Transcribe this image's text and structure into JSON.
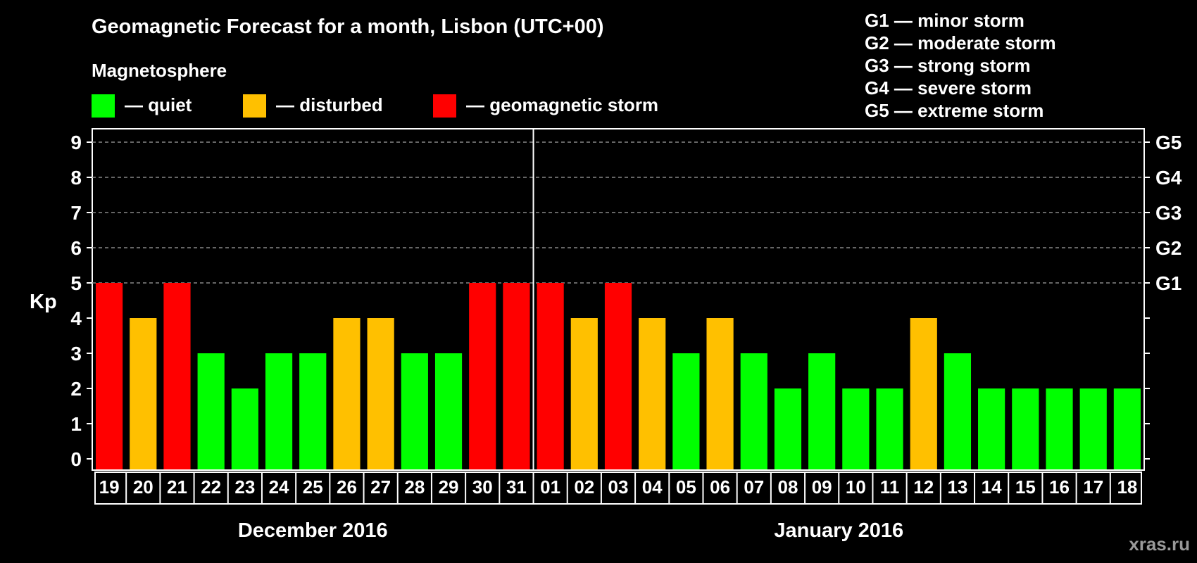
{
  "chart_data": {
    "type": "bar",
    "title": "Geomagnetic Forecast for a month, Lisbon (UTC+00)",
    "legend": {
      "heading": "Magnetosphere",
      "items": [
        {
          "label": "— quiet",
          "color": "#00ff00"
        },
        {
          "label": "— disturbed",
          "color": "#ffc000"
        },
        {
          "label": "— geomagnetic storm",
          "color": "#ff0000"
        }
      ]
    },
    "storm_scale": [
      "G1 — minor storm",
      "G2 — moderate storm",
      "G3 — strong storm",
      "G4 — severe storm",
      "G5 — extreme storm"
    ],
    "ylabel": "Kp",
    "ylim": [
      0,
      9
    ],
    "yticks": [
      "0",
      "1",
      "2",
      "3",
      "4",
      "5",
      "6",
      "7",
      "8",
      "9"
    ],
    "right_ticks": [
      {
        "kp": 5,
        "label": "G1"
      },
      {
        "kp": 6,
        "label": "G2"
      },
      {
        "kp": 7,
        "label": "G3"
      },
      {
        "kp": 8,
        "label": "G4"
      },
      {
        "kp": 9,
        "label": "G5"
      }
    ],
    "grid": "dashed at Kp 5-9",
    "categories": [
      "19",
      "20",
      "21",
      "22",
      "23",
      "24",
      "25",
      "26",
      "27",
      "28",
      "29",
      "30",
      "31",
      "01",
      "02",
      "03",
      "04",
      "05",
      "06",
      "07",
      "08",
      "09",
      "10",
      "11",
      "12",
      "13",
      "14",
      "15",
      "16",
      "17",
      "18"
    ],
    "values": [
      5,
      4,
      5,
      3,
      2,
      3,
      3,
      4,
      4,
      3,
      3,
      5,
      5,
      5,
      4,
      5,
      4,
      3,
      4,
      3,
      2,
      3,
      2,
      2,
      4,
      3,
      2,
      2,
      2,
      2,
      2
    ],
    "colors": {
      "quiet": "#00ff00",
      "disturbed": "#ffc000",
      "storm": "#ff0000"
    },
    "months": [
      {
        "label": "December 2016",
        "start_index": 0,
        "count": 13
      },
      {
        "label": "January 2016",
        "start_index": 13,
        "count": 18
      }
    ]
  },
  "watermark": "xras.ru"
}
